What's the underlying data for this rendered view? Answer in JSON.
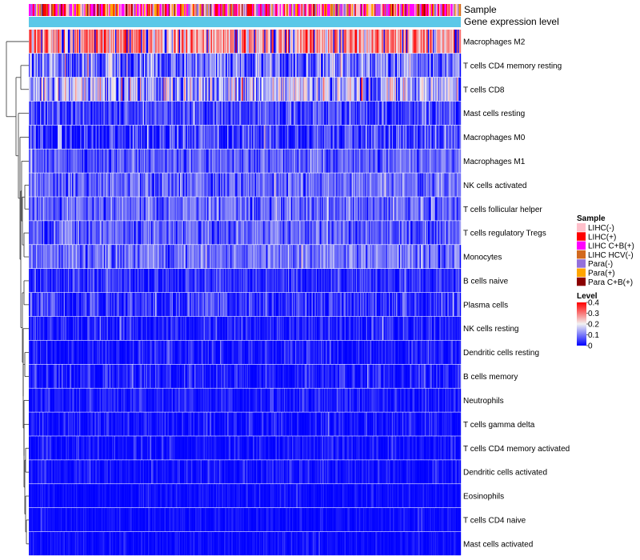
{
  "chart_data": {
    "type": "heatmap",
    "title": "",
    "xlabel": "",
    "ylabel": "",
    "n_samples": 420,
    "annotation_rows": [
      {
        "name": "Sample",
        "label": "Sample",
        "kind": "categorical"
      },
      {
        "name": "Gene expression level",
        "label": "Gene expression level",
        "kind": "constant",
        "color": "#5BC8E8"
      }
    ],
    "rows": [
      {
        "label": "Macrophages M2",
        "mean": 0.27,
        "spread": 0.13
      },
      {
        "label": "T cells CD4 memory resting",
        "mean": 0.1,
        "spread": 0.1
      },
      {
        "label": "T cells CD8",
        "mean": 0.16,
        "spread": 0.12
      },
      {
        "label": "Mast cells resting",
        "mean": 0.06,
        "spread": 0.07
      },
      {
        "label": "Macrophages M0",
        "mean": 0.05,
        "spread": 0.09
      },
      {
        "label": "Macrophages M1",
        "mean": 0.08,
        "spread": 0.05
      },
      {
        "label": "NK cells activated",
        "mean": 0.09,
        "spread": 0.06
      },
      {
        "label": "T cells follicular helper",
        "mean": 0.09,
        "spread": 0.06
      },
      {
        "label": "T cells regulatory  Tregs",
        "mean": 0.08,
        "spread": 0.06
      },
      {
        "label": "Monocytes",
        "mean": 0.1,
        "spread": 0.06
      },
      {
        "label": "B cells naive",
        "mean": 0.04,
        "spread": 0.06
      },
      {
        "label": "Plasma cells",
        "mean": 0.04,
        "spread": 0.07
      },
      {
        "label": "NK cells resting",
        "mean": 0.02,
        "spread": 0.06
      },
      {
        "label": "Dendritic cells resting",
        "mean": 0.02,
        "spread": 0.05
      },
      {
        "label": "B cells memory",
        "mean": 0.02,
        "spread": 0.06
      },
      {
        "label": "Neutrophils",
        "mean": 0.02,
        "spread": 0.04
      },
      {
        "label": "T cells gamma delta",
        "mean": 0.01,
        "spread": 0.06
      },
      {
        "label": "T cells CD4 memory activated",
        "mean": 0.01,
        "spread": 0.05
      },
      {
        "label": "Dendritic cells activated",
        "mean": 0.01,
        "spread": 0.04
      },
      {
        "label": "Eosinophils",
        "mean": 0.005,
        "spread": 0.03
      },
      {
        "label": "T cells CD4 naive",
        "mean": 0.005,
        "spread": 0.03
      },
      {
        "label": "Mast cells activated",
        "mean": 0.005,
        "spread": 0.03
      }
    ],
    "sample_legend": {
      "title": "Sample",
      "items": [
        {
          "label": "LIHC(-)",
          "color": "#FFC0CB",
          "weight": 0.22
        },
        {
          "label": "LIHC(+)",
          "color": "#FF0000",
          "weight": 0.18
        },
        {
          "label": "LIHC C+B(+)",
          "color": "#FF00FF",
          "weight": 0.26
        },
        {
          "label": "LIHC HCV(-)",
          "color": "#D2691E",
          "weight": 0.06
        },
        {
          "label": "Para(-)",
          "color": "#9370DB",
          "weight": 0.12
        },
        {
          "label": "Para(+)",
          "color": "#FFA500",
          "weight": 0.1
        },
        {
          "label": "Para C+B(+)",
          "color": "#8B0000",
          "weight": 0.06
        }
      ]
    },
    "level_legend": {
      "title": "Level",
      "range": [
        0,
        0.4
      ],
      "ticks": [
        "0.4",
        "0.3",
        "0.2",
        "0.1",
        "0"
      ],
      "tick_values": [
        0.4,
        0.3,
        0.2,
        0.1,
        0
      ],
      "colors": {
        "low": "#0000FF",
        "mid": "#F2F2F2",
        "high": "#FF0000"
      },
      "mid_value": 0.2
    },
    "dendrogram": "row clustering (left side)"
  }
}
